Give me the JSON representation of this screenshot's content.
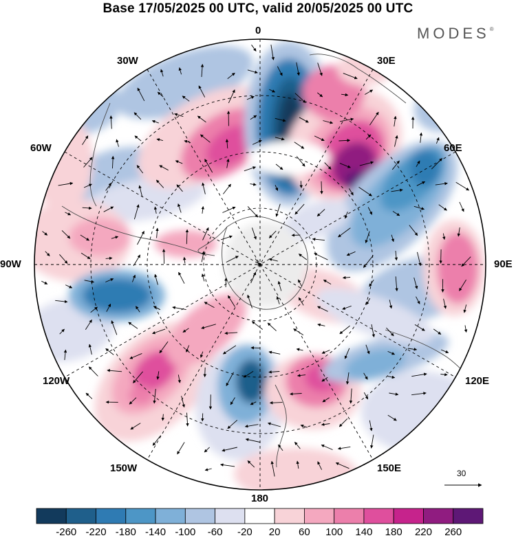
{
  "title": "Base 17/05/2025 00 UTC, valid 20/05/2025 00 UTC",
  "brand": "MODES",
  "brand_mark": "®",
  "longitude_labels": {
    "lon_0": "0",
    "lon_30e": "30E",
    "lon_60e": "60E",
    "lon_90e": "90E",
    "lon_120e": "120E",
    "lon_150e": "150E",
    "lon_180": "180",
    "lon_150w": "150W",
    "lon_120w": "120W",
    "lon_90w": "90W",
    "lon_60w": "60W",
    "lon_30w": "30W"
  },
  "reference_vector": {
    "value": "30"
  },
  "colorbar": {
    "ticks": [
      "-260",
      "-220",
      "-180",
      "-140",
      "-100",
      "-60",
      "-20",
      "20",
      "60",
      "100",
      "140",
      "180",
      "220",
      "260"
    ],
    "colors": [
      "#123a5c",
      "#1f5f8b",
      "#2f7bb3",
      "#4d96c6",
      "#7fb0d8",
      "#afc5e2",
      "#dde0f0",
      "#ffffff",
      "#f8d3d8",
      "#f4a8bf",
      "#ec7fab",
      "#df4f9d",
      "#c6238c",
      "#901c80",
      "#5e1876"
    ]
  }
}
